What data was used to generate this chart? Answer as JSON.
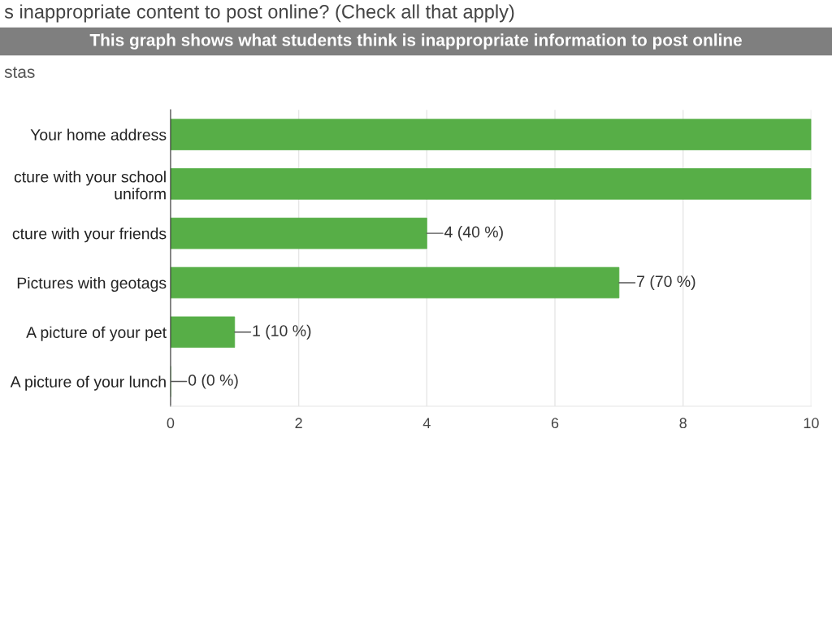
{
  "chart_data": {
    "type": "bar",
    "orientation": "horizontal",
    "title": "This graph shows what students think is inappropriate information to post online",
    "subtitle": "s inappropriate content to post online? (Check all that apply)",
    "annotations": [
      "stas"
    ],
    "categories": [
      "Your home address",
      "cture with your school\nuniform",
      "cture with your friends",
      "Pictures with geotags",
      "A picture of your pet",
      "A picture of your lunch"
    ],
    "values": [
      10,
      10,
      4,
      7,
      1,
      0
    ],
    "value_labels": [
      null,
      null,
      "4 (40 %)",
      "7 (70 %)",
      "1 (10 %)",
      "0 (0 %)"
    ],
    "color": "#57ae47",
    "xlim": [
      0,
      10
    ],
    "xticks": [
      0,
      2,
      4,
      6,
      8,
      10
    ],
    "grid": "x"
  }
}
